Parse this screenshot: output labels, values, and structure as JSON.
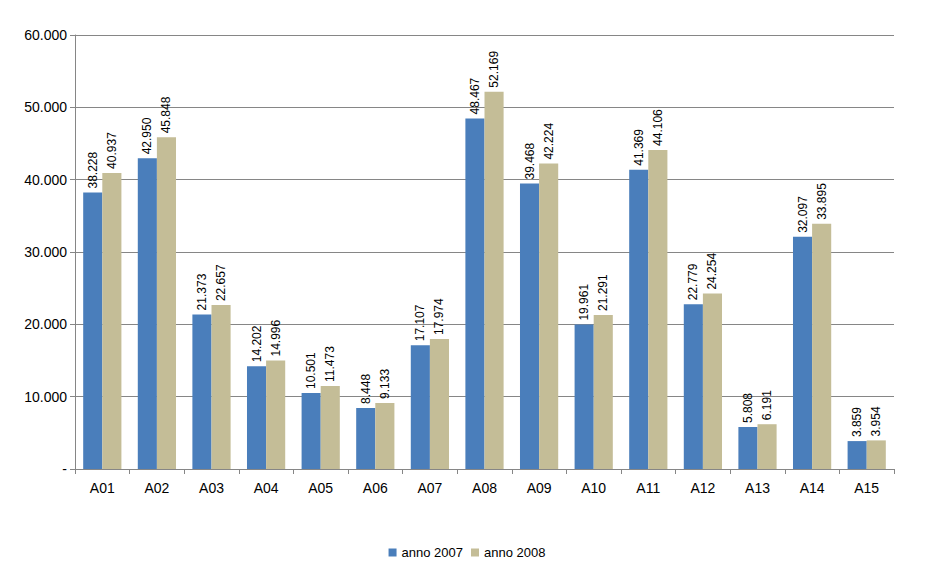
{
  "chart_data": {
    "type": "bar",
    "categories": [
      "A01",
      "A02",
      "A03",
      "A04",
      "A05",
      "A06",
      "A07",
      "A08",
      "A09",
      "A10",
      "A11",
      "A12",
      "A13",
      "A14",
      "A15"
    ],
    "series": [
      {
        "name": "anno 2007",
        "color": "#4a7ebb",
        "values": [
          38228,
          42950,
          21373,
          14202,
          10501,
          8448,
          17107,
          48467,
          39468,
          19961,
          41369,
          22779,
          5808,
          32097,
          3859
        ],
        "value_labels": [
          "38.228",
          "42.950",
          "21.373",
          "14.202",
          "10.501",
          "8.448",
          "17.107",
          "48.467",
          "39.468",
          "19.961",
          "41.369",
          "22.779",
          "5.808",
          "32.097",
          "3.859"
        ]
      },
      {
        "name": "anno 2008",
        "color": "#c4bd97",
        "values": [
          40937,
          45848,
          22657,
          14996,
          11473,
          9133,
          17974,
          52169,
          42224,
          21291,
          44106,
          24254,
          6191,
          33895,
          3954
        ],
        "value_labels": [
          "40.937",
          "45.848",
          "22.657",
          "14.996",
          "11.473",
          "9.133",
          "17.974",
          "52.169",
          "42.224",
          "21.291",
          "44.106",
          "24.254",
          "6.191",
          "33.895",
          "3.954"
        ]
      }
    ],
    "ylim": [
      0,
      60000
    ],
    "yticks": [
      {
        "value": 0,
        "label": "-"
      },
      {
        "value": 10000,
        "label": "10.000"
      },
      {
        "value": 20000,
        "label": "20.000"
      },
      {
        "value": 30000,
        "label": "30.000"
      },
      {
        "value": 40000,
        "label": "40.000"
      },
      {
        "value": 50000,
        "label": "50.000"
      },
      {
        "value": 60000,
        "label": "60.000"
      }
    ],
    "grid": true,
    "legend": "bottom",
    "data_labels": true
  }
}
